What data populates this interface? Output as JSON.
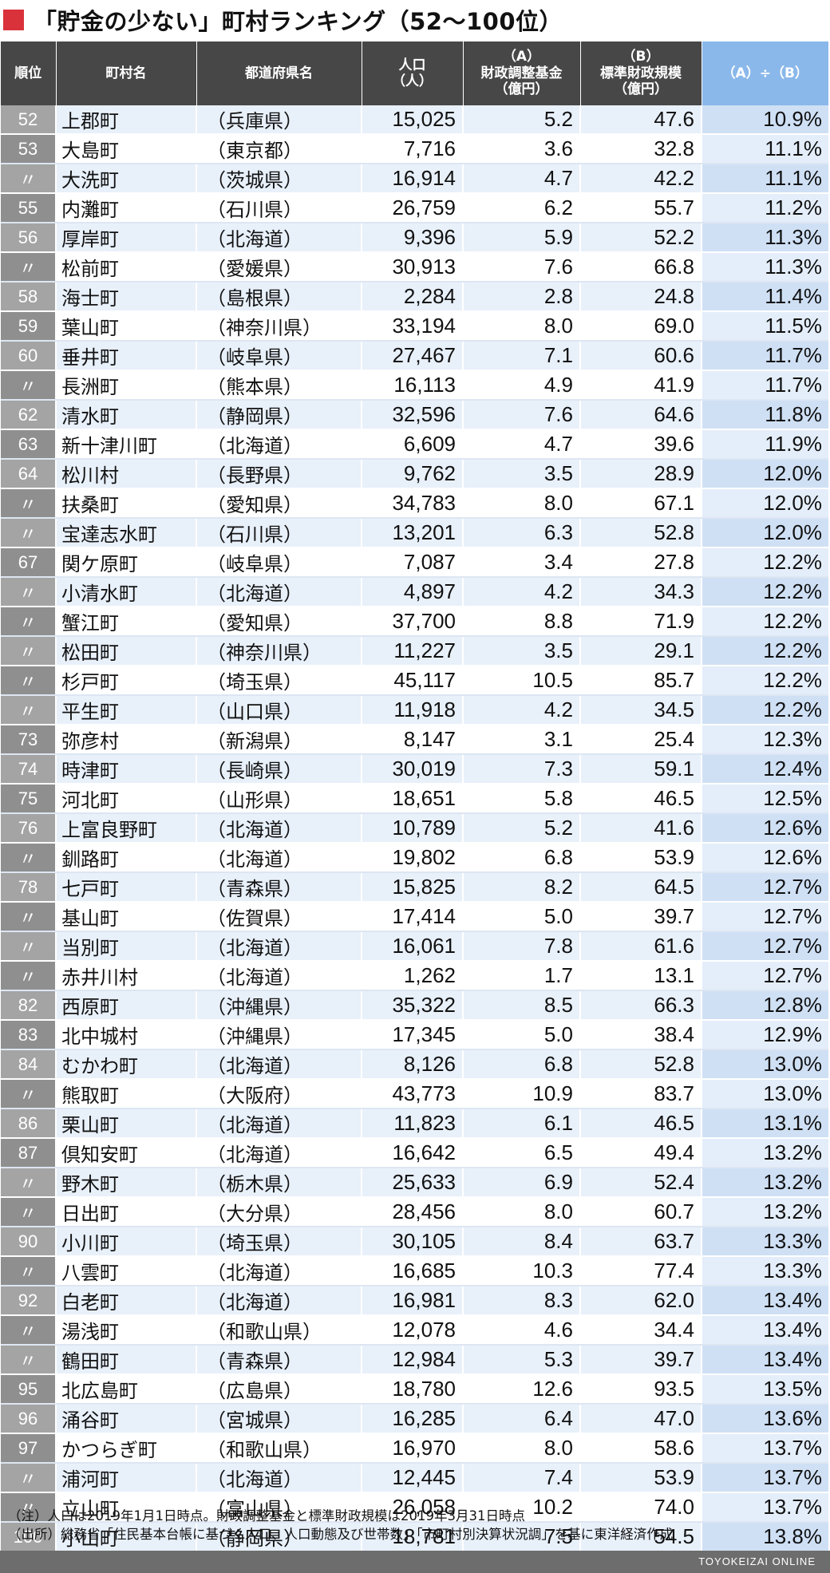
{
  "title": "「貯金の少ない」町村ランキング（52〜100位）",
  "headers": {
    "rank": "順位",
    "town": "町村名",
    "prefecture": "都道府県名",
    "population": [
      "人口",
      "（人）"
    ],
    "fund_a": [
      "（A）",
      "財政調整基金",
      "（億円）"
    ],
    "scale_b": [
      "（B）",
      "標準財政規模",
      "（億円）"
    ],
    "ratio": "（A）÷（B）"
  },
  "rows": [
    {
      "rank": "52",
      "town": "上郡町",
      "prefecture": "（兵庫県）",
      "population": "15,025",
      "fund_a": "5.2",
      "scale_b": "47.6",
      "ratio": "10.9%"
    },
    {
      "rank": "53",
      "town": "大島町",
      "prefecture": "（東京都）",
      "population": "7,716",
      "fund_a": "3.6",
      "scale_b": "32.8",
      "ratio": "11.1%"
    },
    {
      "rank": "〃",
      "town": "大洗町",
      "prefecture": "（茨城県）",
      "population": "16,914",
      "fund_a": "4.7",
      "scale_b": "42.2",
      "ratio": "11.1%"
    },
    {
      "rank": "55",
      "town": "内灘町",
      "prefecture": "（石川県）",
      "population": "26,759",
      "fund_a": "6.2",
      "scale_b": "55.7",
      "ratio": "11.2%"
    },
    {
      "rank": "56",
      "town": "厚岸町",
      "prefecture": "（北海道）",
      "population": "9,396",
      "fund_a": "5.9",
      "scale_b": "52.2",
      "ratio": "11.3%"
    },
    {
      "rank": "〃",
      "town": "松前町",
      "prefecture": "（愛媛県）",
      "population": "30,913",
      "fund_a": "7.6",
      "scale_b": "66.8",
      "ratio": "11.3%"
    },
    {
      "rank": "58",
      "town": "海士町",
      "prefecture": "（島根県）",
      "population": "2,284",
      "fund_a": "2.8",
      "scale_b": "24.8",
      "ratio": "11.4%"
    },
    {
      "rank": "59",
      "town": "葉山町",
      "prefecture": "（神奈川県）",
      "population": "33,194",
      "fund_a": "8.0",
      "scale_b": "69.0",
      "ratio": "11.5%"
    },
    {
      "rank": "60",
      "town": "垂井町",
      "prefecture": "（岐阜県）",
      "population": "27,467",
      "fund_a": "7.1",
      "scale_b": "60.6",
      "ratio": "11.7%"
    },
    {
      "rank": "〃",
      "town": "長洲町",
      "prefecture": "（熊本県）",
      "population": "16,113",
      "fund_a": "4.9",
      "scale_b": "41.9",
      "ratio": "11.7%"
    },
    {
      "rank": "62",
      "town": "清水町",
      "prefecture": "（静岡県）",
      "population": "32,596",
      "fund_a": "7.6",
      "scale_b": "64.6",
      "ratio": "11.8%"
    },
    {
      "rank": "63",
      "town": "新十津川町",
      "prefecture": "（北海道）",
      "population": "6,609",
      "fund_a": "4.7",
      "scale_b": "39.6",
      "ratio": "11.9%"
    },
    {
      "rank": "64",
      "town": "松川村",
      "prefecture": "（長野県）",
      "population": "9,762",
      "fund_a": "3.5",
      "scale_b": "28.9",
      "ratio": "12.0%"
    },
    {
      "rank": "〃",
      "town": "扶桑町",
      "prefecture": "（愛知県）",
      "population": "34,783",
      "fund_a": "8.0",
      "scale_b": "67.1",
      "ratio": "12.0%"
    },
    {
      "rank": "〃",
      "town": "宝達志水町",
      "prefecture": "（石川県）",
      "population": "13,201",
      "fund_a": "6.3",
      "scale_b": "52.8",
      "ratio": "12.0%"
    },
    {
      "rank": "67",
      "town": "関ケ原町",
      "prefecture": "（岐阜県）",
      "population": "7,087",
      "fund_a": "3.4",
      "scale_b": "27.8",
      "ratio": "12.2%"
    },
    {
      "rank": "〃",
      "town": "小清水町",
      "prefecture": "（北海道）",
      "population": "4,897",
      "fund_a": "4.2",
      "scale_b": "34.3",
      "ratio": "12.2%"
    },
    {
      "rank": "〃",
      "town": "蟹江町",
      "prefecture": "（愛知県）",
      "population": "37,700",
      "fund_a": "8.8",
      "scale_b": "71.9",
      "ratio": "12.2%"
    },
    {
      "rank": "〃",
      "town": "松田町",
      "prefecture": "（神奈川県）",
      "population": "11,227",
      "fund_a": "3.5",
      "scale_b": "29.1",
      "ratio": "12.2%"
    },
    {
      "rank": "〃",
      "town": "杉戸町",
      "prefecture": "（埼玉県）",
      "population": "45,117",
      "fund_a": "10.5",
      "scale_b": "85.7",
      "ratio": "12.2%"
    },
    {
      "rank": "〃",
      "town": "平生町",
      "prefecture": "（山口県）",
      "population": "11,918",
      "fund_a": "4.2",
      "scale_b": "34.5",
      "ratio": "12.2%"
    },
    {
      "rank": "73",
      "town": "弥彦村",
      "prefecture": "（新潟県）",
      "population": "8,147",
      "fund_a": "3.1",
      "scale_b": "25.4",
      "ratio": "12.3%"
    },
    {
      "rank": "74",
      "town": "時津町",
      "prefecture": "（長崎県）",
      "population": "30,019",
      "fund_a": "7.3",
      "scale_b": "59.1",
      "ratio": "12.4%"
    },
    {
      "rank": "75",
      "town": "河北町",
      "prefecture": "（山形県）",
      "population": "18,651",
      "fund_a": "5.8",
      "scale_b": "46.5",
      "ratio": "12.5%"
    },
    {
      "rank": "76",
      "town": "上富良野町",
      "prefecture": "（北海道）",
      "population": "10,789",
      "fund_a": "5.2",
      "scale_b": "41.6",
      "ratio": "12.6%"
    },
    {
      "rank": "〃",
      "town": "釧路町",
      "prefecture": "（北海道）",
      "population": "19,802",
      "fund_a": "6.8",
      "scale_b": "53.9",
      "ratio": "12.6%"
    },
    {
      "rank": "78",
      "town": "七戸町",
      "prefecture": "（青森県）",
      "population": "15,825",
      "fund_a": "8.2",
      "scale_b": "64.5",
      "ratio": "12.7%"
    },
    {
      "rank": "〃",
      "town": "基山町",
      "prefecture": "（佐賀県）",
      "population": "17,414",
      "fund_a": "5.0",
      "scale_b": "39.7",
      "ratio": "12.7%"
    },
    {
      "rank": "〃",
      "town": "当別町",
      "prefecture": "（北海道）",
      "population": "16,061",
      "fund_a": "7.8",
      "scale_b": "61.6",
      "ratio": "12.7%"
    },
    {
      "rank": "〃",
      "town": "赤井川村",
      "prefecture": "（北海道）",
      "population": "1,262",
      "fund_a": "1.7",
      "scale_b": "13.1",
      "ratio": "12.7%"
    },
    {
      "rank": "82",
      "town": "西原町",
      "prefecture": "（沖縄県）",
      "population": "35,322",
      "fund_a": "8.5",
      "scale_b": "66.3",
      "ratio": "12.8%"
    },
    {
      "rank": "83",
      "town": "北中城村",
      "prefecture": "（沖縄県）",
      "population": "17,345",
      "fund_a": "5.0",
      "scale_b": "38.4",
      "ratio": "12.9%"
    },
    {
      "rank": "84",
      "town": "むかわ町",
      "prefecture": "（北海道）",
      "population": "8,126",
      "fund_a": "6.8",
      "scale_b": "52.8",
      "ratio": "13.0%"
    },
    {
      "rank": "〃",
      "town": "熊取町",
      "prefecture": "（大阪府）",
      "population": "43,773",
      "fund_a": "10.9",
      "scale_b": "83.7",
      "ratio": "13.0%"
    },
    {
      "rank": "86",
      "town": "栗山町",
      "prefecture": "（北海道）",
      "population": "11,823",
      "fund_a": "6.1",
      "scale_b": "46.5",
      "ratio": "13.1%"
    },
    {
      "rank": "87",
      "town": "倶知安町",
      "prefecture": "（北海道）",
      "population": "16,642",
      "fund_a": "6.5",
      "scale_b": "49.4",
      "ratio": "13.2%"
    },
    {
      "rank": "〃",
      "town": "野木町",
      "prefecture": "（栃木県）",
      "population": "25,633",
      "fund_a": "6.9",
      "scale_b": "52.4",
      "ratio": "13.2%"
    },
    {
      "rank": "〃",
      "town": "日出町",
      "prefecture": "（大分県）",
      "population": "28,456",
      "fund_a": "8.0",
      "scale_b": "60.7",
      "ratio": "13.2%"
    },
    {
      "rank": "90",
      "town": "小川町",
      "prefecture": "（埼玉県）",
      "population": "30,105",
      "fund_a": "8.4",
      "scale_b": "63.7",
      "ratio": "13.3%"
    },
    {
      "rank": "〃",
      "town": "八雲町",
      "prefecture": "（北海道）",
      "population": "16,685",
      "fund_a": "10.3",
      "scale_b": "77.4",
      "ratio": "13.3%"
    },
    {
      "rank": "92",
      "town": "白老町",
      "prefecture": "（北海道）",
      "population": "16,981",
      "fund_a": "8.3",
      "scale_b": "62.0",
      "ratio": "13.4%"
    },
    {
      "rank": "〃",
      "town": "湯浅町",
      "prefecture": "（和歌山県）",
      "population": "12,078",
      "fund_a": "4.6",
      "scale_b": "34.4",
      "ratio": "13.4%"
    },
    {
      "rank": "〃",
      "town": "鶴田町",
      "prefecture": "（青森県）",
      "population": "12,984",
      "fund_a": "5.3",
      "scale_b": "39.7",
      "ratio": "13.4%"
    },
    {
      "rank": "95",
      "town": "北広島町",
      "prefecture": "（広島県）",
      "population": "18,780",
      "fund_a": "12.6",
      "scale_b": "93.5",
      "ratio": "13.5%"
    },
    {
      "rank": "96",
      "town": "涌谷町",
      "prefecture": "（宮城県）",
      "population": "16,285",
      "fund_a": "6.4",
      "scale_b": "47.0",
      "ratio": "13.6%"
    },
    {
      "rank": "97",
      "town": "かつらぎ町",
      "prefecture": "（和歌山県）",
      "population": "16,970",
      "fund_a": "8.0",
      "scale_b": "58.6",
      "ratio": "13.7%"
    },
    {
      "rank": "〃",
      "town": "浦河町",
      "prefecture": "（北海道）",
      "population": "12,445",
      "fund_a": "7.4",
      "scale_b": "53.9",
      "ratio": "13.7%"
    },
    {
      "rank": "〃",
      "town": "立山町",
      "prefecture": "（富山県）",
      "population": "26,058",
      "fund_a": "10.2",
      "scale_b": "74.0",
      "ratio": "13.7%"
    },
    {
      "rank": "100",
      "town": "小山町",
      "prefecture": "（静岡県）",
      "population": "18,781",
      "fund_a": "7.5",
      "scale_b": "54.5",
      "ratio": "13.8%"
    }
  ],
  "notes": [
    "（注）人口は2019年1月1日時点。財政調整基金と標準財政規模は2019年3月31日時点",
    "（出所）総務省「住民基本台帳に基づく人口、人口動態及び世帯数」「市町村別決算状況調」を基に東洋経済作成"
  ],
  "footer": "TOYOKEIZAI ONLINE",
  "colors": {
    "title_marker": "#d9323b",
    "header_bg": "#474747",
    "header_ratio_bg": "#8ab8ea",
    "rank_bg": "#a4a4a4",
    "row_alt_bg": "#e8f0fa",
    "footer_bg": "#6d6d6d"
  }
}
